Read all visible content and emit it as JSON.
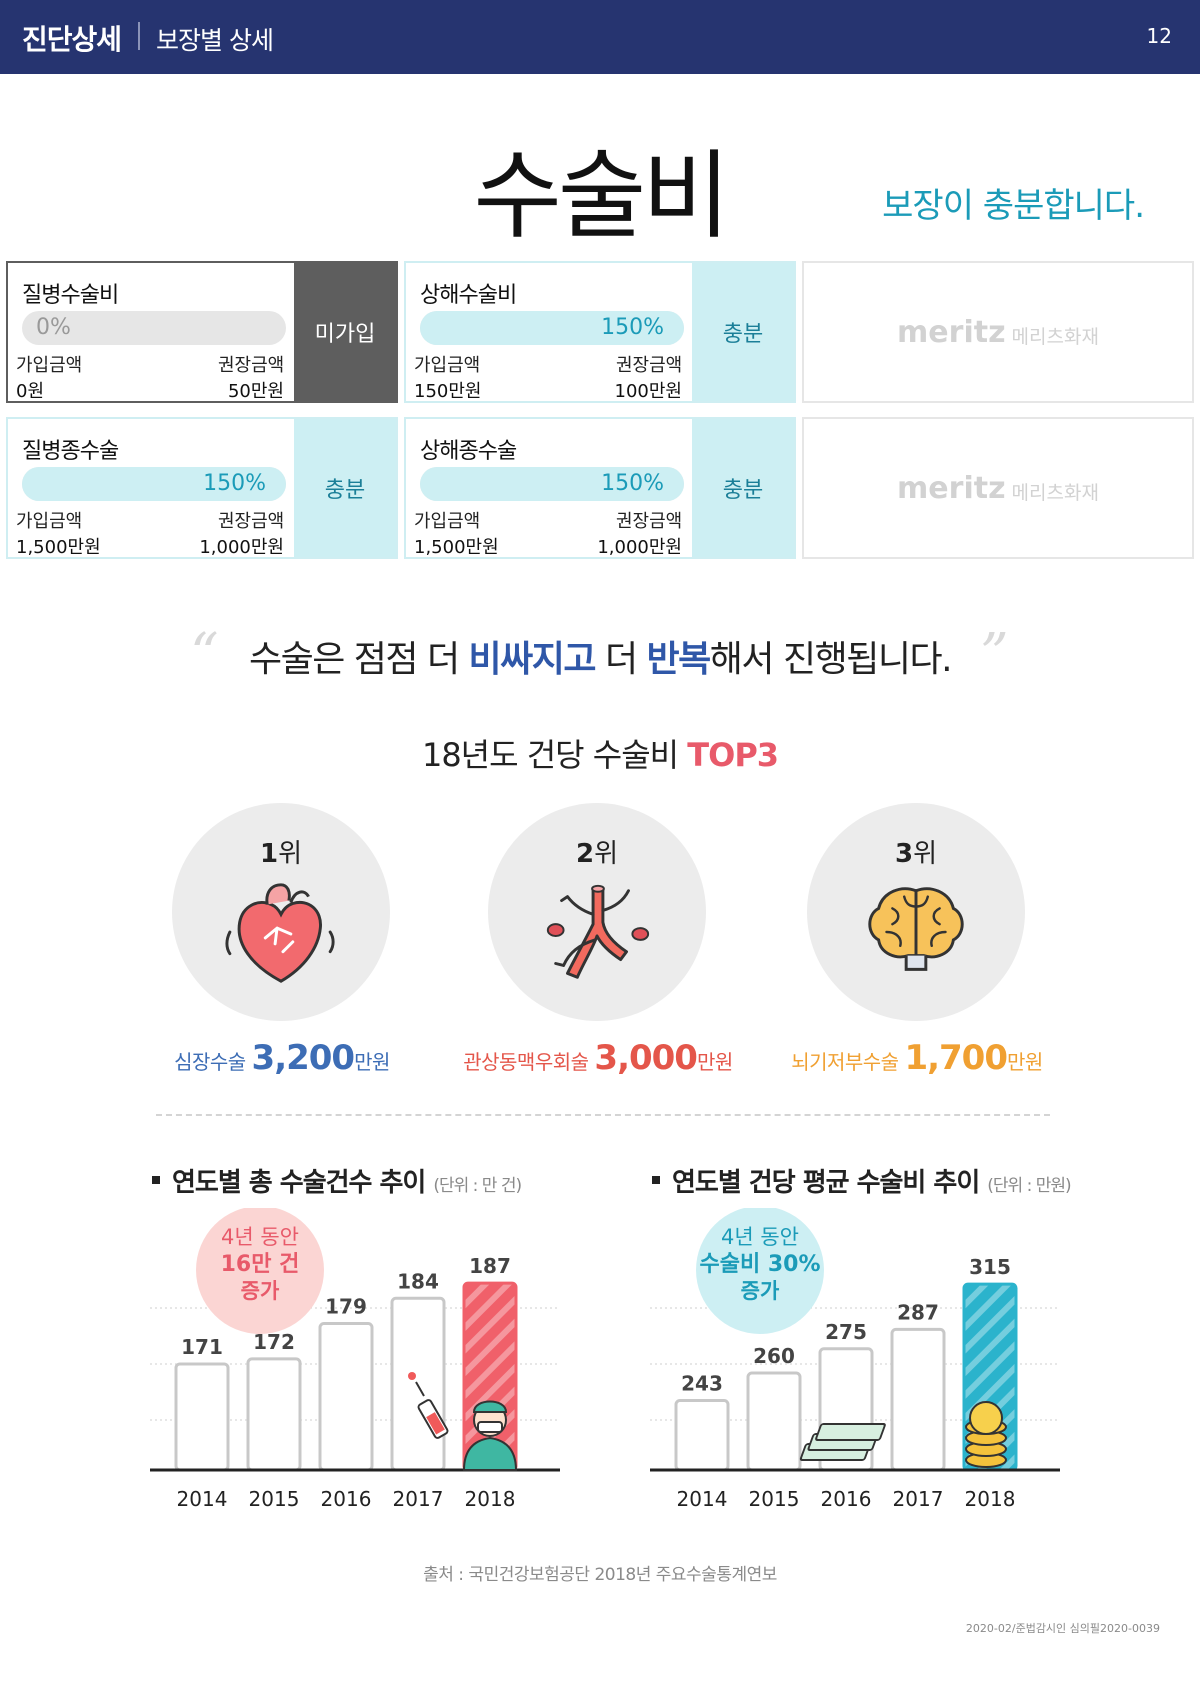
{
  "header": {
    "section": "진단상세",
    "subsection": "보장별 상세",
    "page": "12"
  },
  "title": "수술비",
  "status": "보장이 충분합니다.",
  "coverages": [
    {
      "name": "질병수술비",
      "progress_label": "0%",
      "progress": 0,
      "enrolled_label": "가입금액",
      "enrolled": "0원",
      "recommended_label": "권장금액",
      "recommended": "50만원",
      "status": "미가입"
    },
    {
      "name": "상해수술비",
      "progress_label": "150%",
      "progress": 1.0,
      "enrolled_label": "가입금액",
      "enrolled": "150만원",
      "recommended_label": "권장금액",
      "recommended": "100만원",
      "status": "충분"
    },
    {
      "name": "질병종수술",
      "progress_label": "150%",
      "progress": 1.0,
      "enrolled_label": "가입금액",
      "enrolled": "1,500만원",
      "recommended_label": "권장금액",
      "recommended": "1,000만원",
      "status": "충분"
    },
    {
      "name": "상해종수술",
      "progress_label": "150%",
      "progress": 1.0,
      "enrolled_label": "가입금액",
      "enrolled": "1,500만원",
      "recommended_label": "권장금액",
      "recommended": "1,000만원",
      "status": "충분"
    }
  ],
  "logo": {
    "brand": "meritz",
    "brand_ko": "메리츠화재"
  },
  "quote": {
    "part1": "수술은 점점 더 ",
    "em1": "비싸지고",
    "part2": " 더 ",
    "em2": "반복",
    "part3": "해서 진행됩니다."
  },
  "top3": {
    "title": "18년도 건당 수술비 ",
    "title_highlight": "TOP3",
    "items": [
      {
        "rank": "1",
        "rank_suffix": "위",
        "name": "심장수술",
        "amount": "3,200",
        "unit": "만원",
        "color": "#3d6db5",
        "icon": "heart-icon"
      },
      {
        "rank": "2",
        "rank_suffix": "위",
        "name": "관상동맥우회술",
        "amount": "3,000",
        "unit": "만원",
        "color": "#e4564a",
        "icon": "artery-icon"
      },
      {
        "rank": "3",
        "rank_suffix": "위",
        "name": "뇌기저부수술",
        "amount": "1,700",
        "unit": "만원",
        "color": "#f0a032",
        "icon": "brain-icon"
      }
    ]
  },
  "chart_data": [
    {
      "type": "bar",
      "title": "연도별 총 수술건수 추이",
      "unit_label": "(단위 : 만 건)",
      "categories": [
        "2014",
        "2015",
        "2016",
        "2017",
        "2018"
      ],
      "values": [
        171,
        172,
        179,
        184,
        187
      ],
      "ylim": [
        150,
        190
      ],
      "highlight_index": 4,
      "highlight_color": "#f0606a",
      "callout": [
        "4년 동안",
        "16만 건",
        "증가"
      ],
      "callout_color": "#e85a6a",
      "callout_bg": "#fbd5d3",
      "decoration": "doctor-syringe-icon"
    },
    {
      "type": "bar",
      "title": "연도별 건당 평균 수술비 추이",
      "unit_label": "(단위 : 만원)",
      "categories": [
        "2014",
        "2015",
        "2016",
        "2017",
        "2018"
      ],
      "values": [
        243,
        260,
        275,
        287,
        315
      ],
      "ylim": [
        200,
        325
      ],
      "highlight_index": 4,
      "highlight_color": "#2bb3cc",
      "callout": [
        "4년 동안",
        "수술비 30%",
        "증가"
      ],
      "callout_color": "#1b9bb8",
      "callout_bg": "#cdeff3",
      "decoration": "money-coins-icon"
    }
  ],
  "source": "출처 : 국민건강보험공단 2018년 주요수술통계연보",
  "compliance_code": "2020-02/준법감시인 심의필2020-0039"
}
